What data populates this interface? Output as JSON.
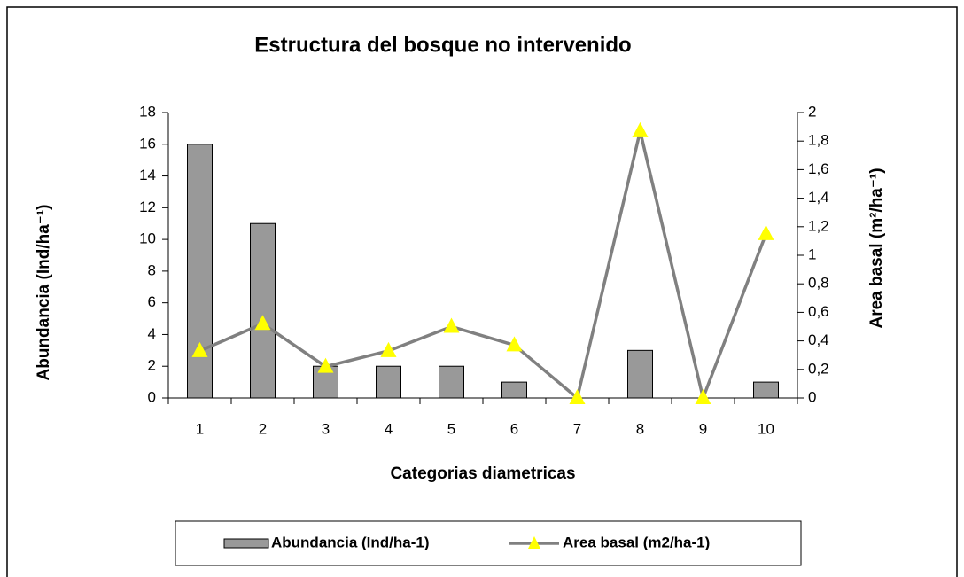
{
  "chart_data": {
    "type": "bar_line",
    "title": "Estructura  del bosque no intervenido",
    "x_label": "Categorias diametricas",
    "y_label": "Abundancia (Ind/ha⁻¹)",
    "y2_label": "Area basal   (m²/ha⁻¹)",
    "categories": [
      "1",
      "2",
      "3",
      "4",
      "5",
      "6",
      "7",
      "8",
      "9",
      "10"
    ],
    "series": [
      {
        "name": "Abundancia (Ind/ha-1)",
        "type": "bar",
        "color": "#999999",
        "values": [
          16,
          11,
          2,
          2,
          2,
          1,
          0,
          3,
          0,
          1
        ]
      },
      {
        "name": "Area basal (m2/ha-1)",
        "type": "line",
        "axis": "y2",
        "color": "#808080",
        "marker_color": "#ffff00",
        "values": [
          0.33,
          0.52,
          0.22,
          0.33,
          0.5,
          0.37,
          0,
          1.87,
          0,
          1.15
        ]
      }
    ],
    "ylim": [
      0,
      18
    ],
    "yticks": [
      0,
      2,
      4,
      6,
      8,
      10,
      12,
      14,
      16,
      18
    ],
    "y2lim": [
      0,
      2
    ],
    "y2ticks": [
      0,
      {
        "value": 0.2,
        "label": "0,2"
      },
      {
        "value": 0.4,
        "label": "0,4"
      },
      {
        "value": 0.6,
        "label": "0,6"
      },
      {
        "value": 0.8,
        "label": "0,8"
      },
      1,
      {
        "value": 1.2,
        "label": "1,2"
      },
      {
        "value": 1.4,
        "label": "1,4"
      },
      {
        "value": 1.6,
        "label": "1,6"
      },
      {
        "value": 1.8,
        "label": "1,8"
      },
      2
    ],
    "legend": "bottom"
  }
}
